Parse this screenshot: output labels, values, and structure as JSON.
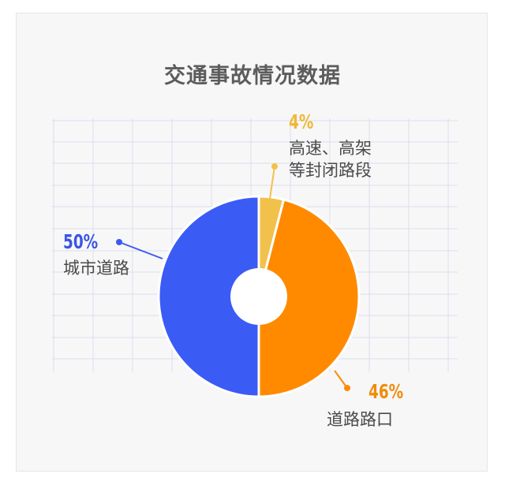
{
  "title": "交通事故情况数据",
  "chart_data": {
    "type": "pie",
    "title": "交通事故情况数据",
    "slices": [
      {
        "label": "高速、高架等封闭路段",
        "label_lines": [
          "高速、高架",
          "等封闭路段"
        ],
        "value": 4,
        "display": "4%",
        "color": "#f1c14b",
        "text_color": "#f0b838"
      },
      {
        "label": "道路路口",
        "label_lines": [
          "道路路口"
        ],
        "value": 46,
        "display": "46%",
        "color": "#ff8a00",
        "text_color": "#f08c0c"
      },
      {
        "label": "城市道路",
        "label_lines": [
          "城市道路"
        ],
        "value": 50,
        "display": "50%",
        "color": "#3b5bf5",
        "text_color": "#3b55e6"
      }
    ],
    "legend": "none",
    "grid": true
  }
}
